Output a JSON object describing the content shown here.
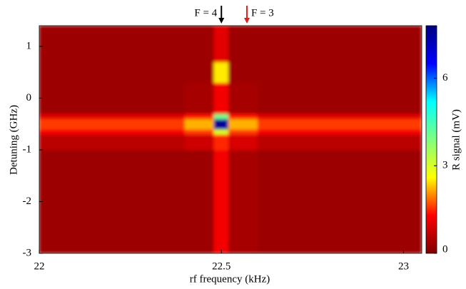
{
  "chart_data": {
    "type": "heatmap",
    "xlabel": "rf frequency  (kHz)",
    "ylabel": "Detuning (GHz)",
    "colorbar_label": "R signal (mV)",
    "x": [
      22,
      22.4,
      22.48,
      22.52,
      22.6,
      23.05
    ],
    "y": [
      -3,
      -1,
      -0.7,
      -0.6,
      -0.4,
      -0.3,
      0.3,
      0.7,
      1.4
    ],
    "z": [
      [
        0.3,
        0.3,
        1.2,
        0.4,
        0.3
      ],
      [
        0.6,
        0.8,
        1.5,
        0.9,
        0.6
      ],
      [
        1.2,
        1.6,
        3,
        1.6,
        1.2
      ],
      [
        1.6,
        2.2,
        7.5,
        2.2,
        1.6
      ],
      [
        1.0,
        1.4,
        4,
        1.4,
        1.0
      ],
      [
        0.3,
        0.4,
        1.2,
        0.4,
        0.3
      ],
      [
        0.3,
        0.3,
        2.5,
        0.3,
        0.3
      ],
      [
        0.3,
        0.3,
        1,
        0.3,
        0.3
      ]
    ],
    "xlim": [
      22,
      23.05
    ],
    "xticks": [
      22,
      22.5,
      23
    ],
    "ylim": [
      -3,
      1.4
    ],
    "yticks": [
      -3,
      -2,
      -1,
      0,
      1
    ],
    "zlim": [
      0,
      7.8
    ],
    "zticks": [
      0,
      3,
      6
    ],
    "colormap": [
      "#800000",
      "#ff0000",
      "#ffff00",
      "#80ff80",
      "#00ffff",
      "#0000ff",
      "#000080"
    ],
    "annotations": [
      {
        "text": "F = 4",
        "x": 22.5,
        "color": "#000000",
        "side": "left"
      },
      {
        "text": "F = 3",
        "x": 22.57,
        "color": "#e0201b",
        "side": "right"
      }
    ]
  }
}
